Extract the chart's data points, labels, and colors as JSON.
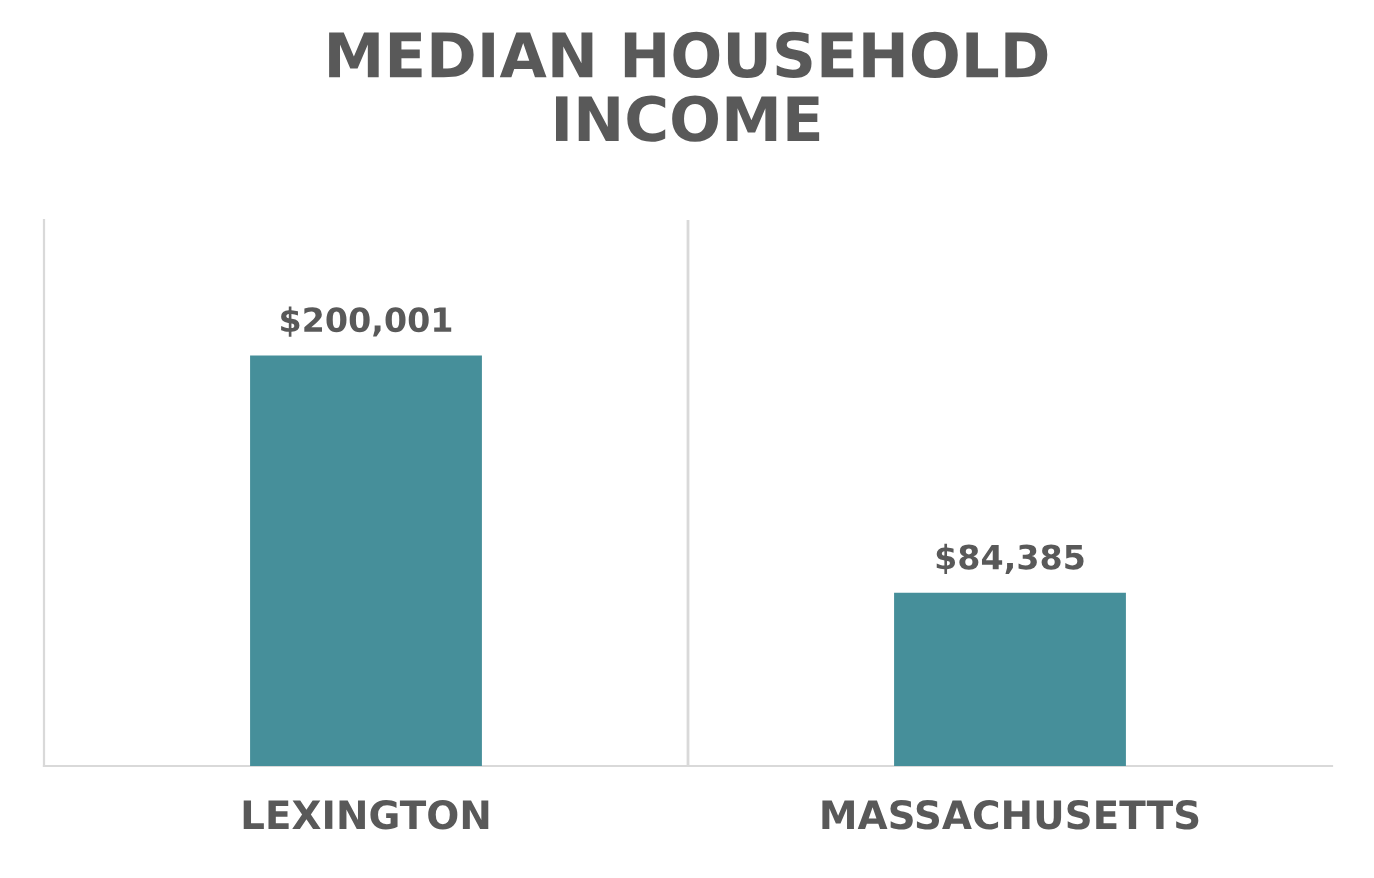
{
  "chart_data": {
    "type": "bar",
    "title": "MEDIAN HOUSEHOLD\nINCOME",
    "categories": [
      "LEXINGTON",
      "MASSACHUSETTS"
    ],
    "values": [
      200001,
      84385
    ],
    "value_labels": [
      "$200,001",
      "$84,385"
    ],
    "color": "#468f9a",
    "grid": "x"
  }
}
